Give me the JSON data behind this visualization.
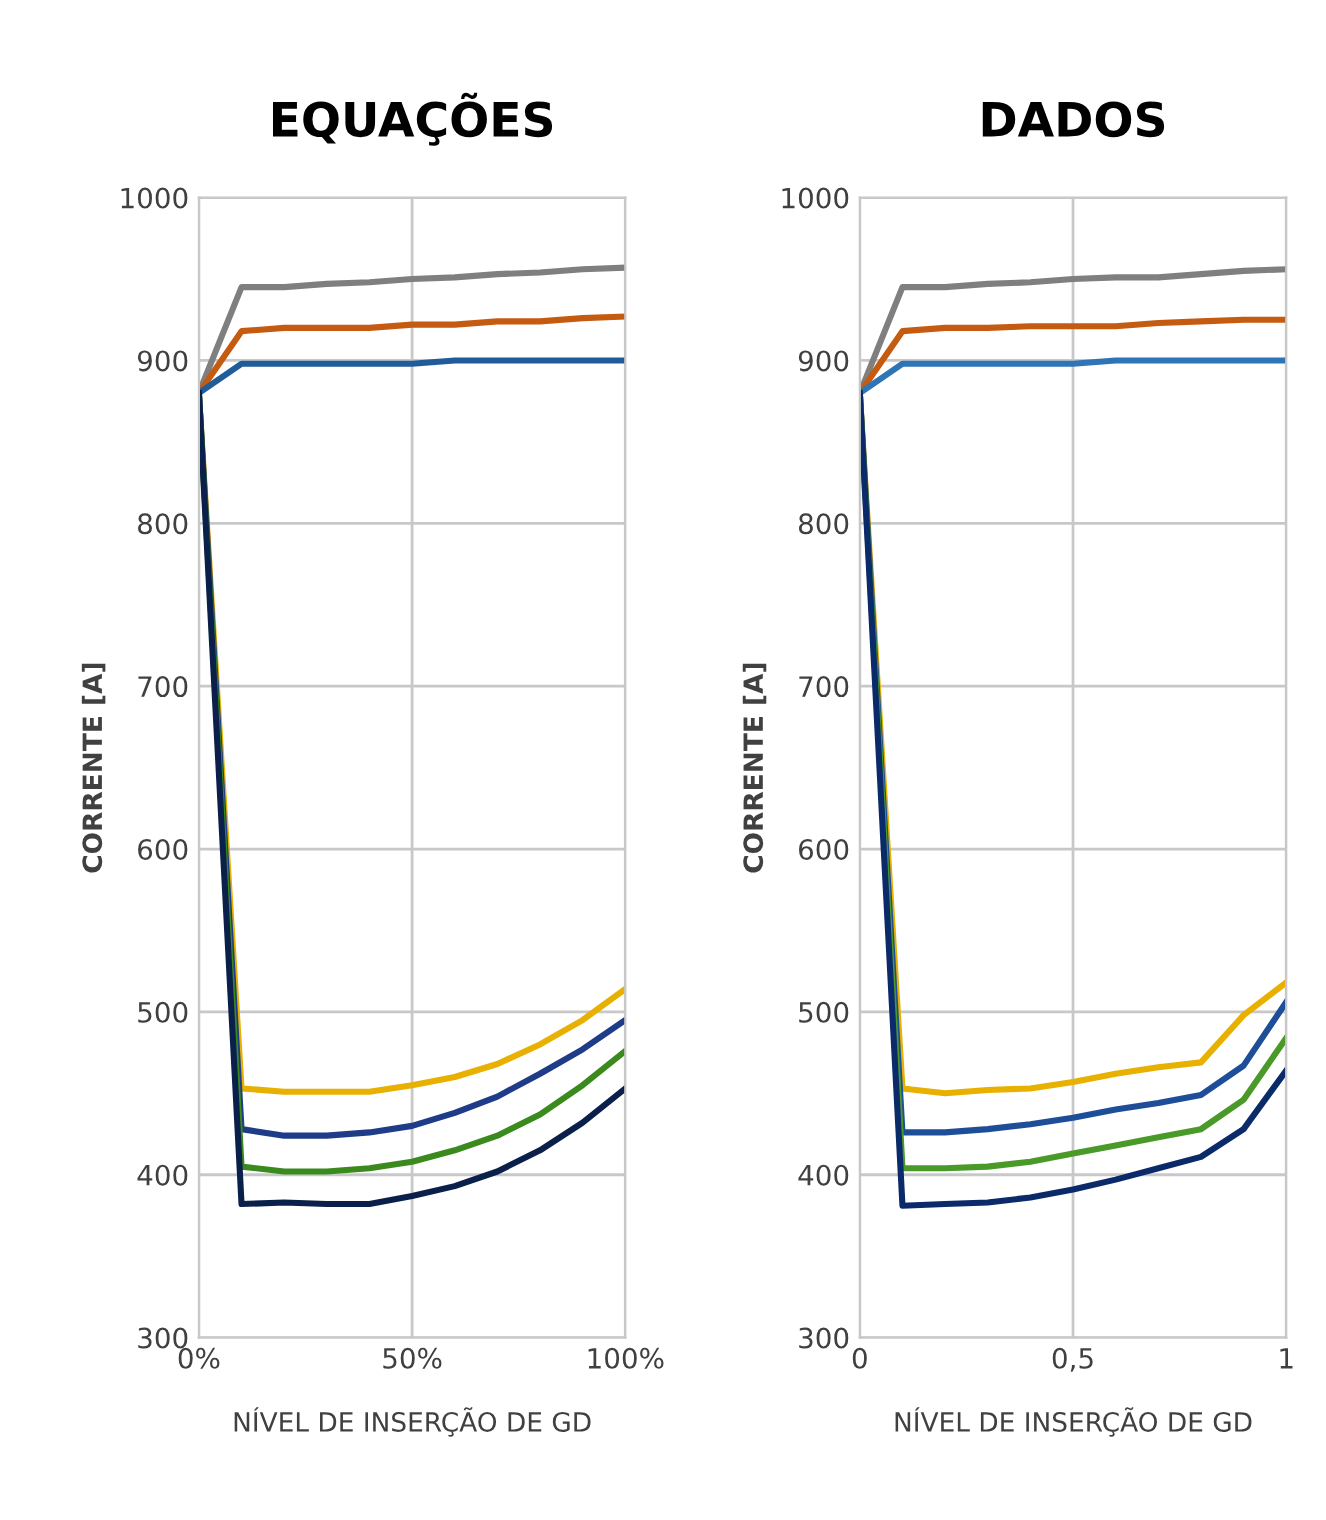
{
  "chart_data": [
    {
      "type": "line",
      "title": "EQUAÇÕES",
      "xlabel": "NÍVEL DE INSERÇÃO DE GD",
      "ylabel": "CORRENTE [A]",
      "x": [
        0,
        0.1,
        0.2,
        0.3,
        0.4,
        0.5,
        0.6,
        0.7,
        0.8,
        0.9,
        1
      ],
      "xlim": [
        0,
        1
      ],
      "xticks": [
        {
          "value": 0,
          "label": "0%"
        },
        {
          "value": 0.5,
          "label": "50%"
        },
        {
          "value": 1,
          "label": "100%"
        }
      ],
      "ylim": [
        300,
        1000
      ],
      "yticks": [
        300,
        400,
        500,
        600,
        700,
        800,
        900,
        1000
      ],
      "grid": true,
      "marker": "none",
      "line_style": "solid",
      "series": [
        {
          "color": "#7f7f7f",
          "values": [
            880,
            945,
            945,
            947,
            948,
            950,
            951,
            953,
            954,
            956,
            957
          ]
        },
        {
          "color": "#c55a11",
          "values": [
            880,
            918,
            920,
            920,
            920,
            922,
            922,
            924,
            924,
            926,
            927
          ]
        },
        {
          "color": "#1f5c99",
          "values": [
            880,
            898,
            898,
            898,
            898,
            898,
            900,
            900,
            900,
            900,
            900
          ]
        },
        {
          "color": "#e8b000",
          "values": [
            880,
            453,
            451,
            451,
            451,
            455,
            460,
            468,
            480,
            495,
            514
          ]
        },
        {
          "color": "#1f3c88",
          "values": [
            880,
            428,
            424,
            424,
            426,
            430,
            438,
            448,
            462,
            477,
            495
          ]
        },
        {
          "color": "#3a8a1e",
          "values": [
            880,
            405,
            402,
            402,
            404,
            408,
            415,
            424,
            437,
            455,
            476
          ]
        },
        {
          "color": "#0a1f4a",
          "values": [
            880,
            382,
            383,
            382,
            382,
            387,
            393,
            402,
            415,
            432,
            453
          ]
        }
      ]
    },
    {
      "type": "line",
      "title": "DADOS",
      "xlabel": "NÍVEL DE INSERÇÃO DE GD",
      "ylabel": "CORRENTE [A]",
      "x": [
        0,
        0.1,
        0.2,
        0.3,
        0.4,
        0.5,
        0.6,
        0.7,
        0.8,
        0.9,
        1
      ],
      "xlim": [
        0,
        1
      ],
      "xticks": [
        0,
        {
          "value": 0.5,
          "label": "0,5"
        },
        1
      ],
      "ylim": [
        300,
        1000
      ],
      "yticks": [
        300,
        400,
        500,
        600,
        700,
        800,
        900,
        1000
      ],
      "grid": true,
      "marker": "none",
      "line_style": "solid",
      "series": [
        {
          "color": "#7f7f7f",
          "values": [
            880,
            945,
            945,
            947,
            948,
            950,
            951,
            951,
            953,
            955,
            956
          ]
        },
        {
          "color": "#c55a11",
          "values": [
            880,
            918,
            920,
            920,
            921,
            921,
            921,
            923,
            924,
            925,
            925
          ]
        },
        {
          "color": "#2e75b6",
          "values": [
            880,
            898,
            898,
            898,
            898,
            898,
            900,
            900,
            900,
            900,
            900
          ]
        },
        {
          "color": "#e8b000",
          "values": [
            880,
            453,
            450,
            452,
            453,
            457,
            462,
            466,
            469,
            498,
            518
          ]
        },
        {
          "color": "#1f4e99",
          "values": [
            880,
            426,
            426,
            428,
            431,
            435,
            440,
            444,
            449,
            467,
            506
          ]
        },
        {
          "color": "#4a9a2a",
          "values": [
            880,
            404,
            404,
            405,
            408,
            413,
            418,
            423,
            428,
            446,
            484
          ]
        },
        {
          "color": "#0a2a6a",
          "values": [
            880,
            381,
            382,
            383,
            386,
            391,
            397,
            404,
            411,
            428,
            464
          ]
        }
      ]
    }
  ]
}
